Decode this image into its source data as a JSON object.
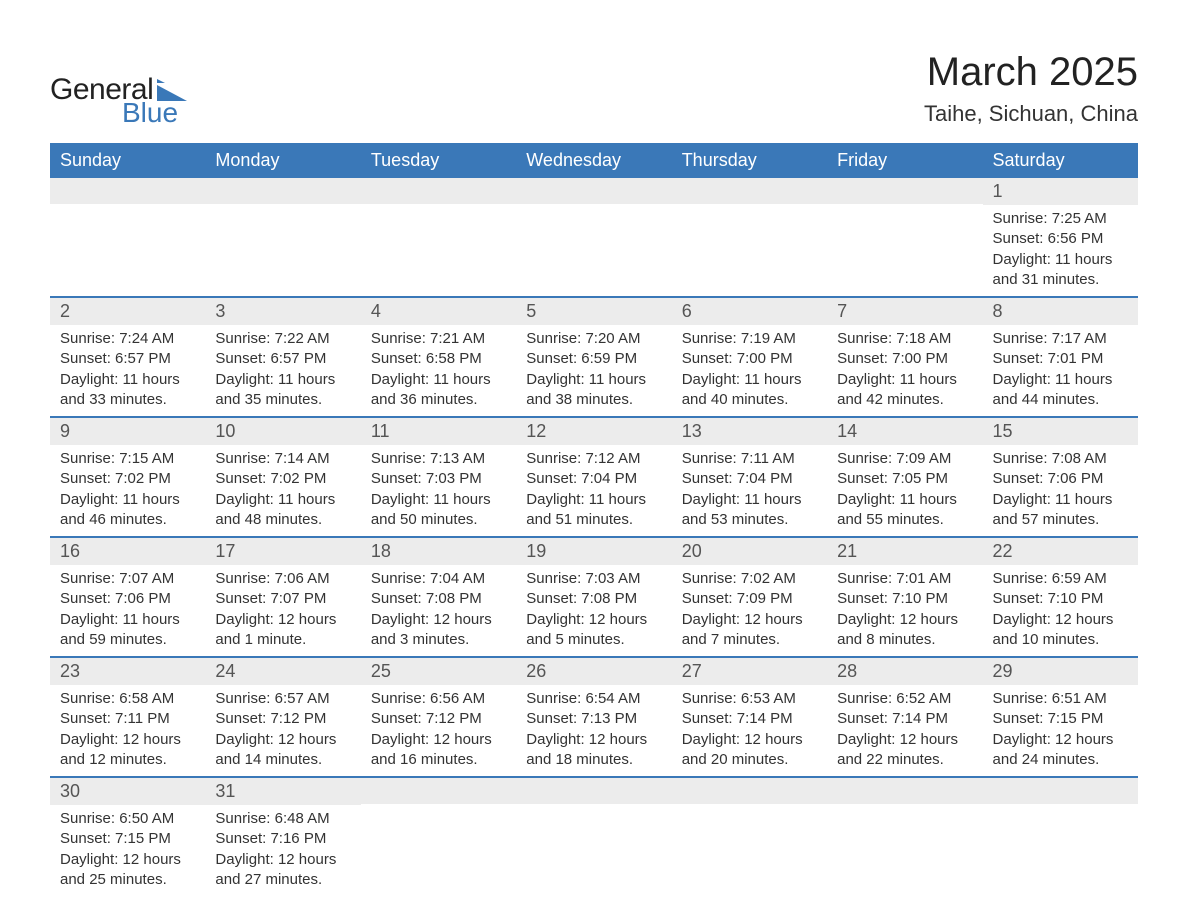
{
  "brand": {
    "word1": "General",
    "word2": "Blue",
    "flag_color": "#3a78b8"
  },
  "header": {
    "title": "March 2025",
    "subtitle": "Taihe, Sichuan, China"
  },
  "colors": {
    "header_bg": "#3a78b8",
    "header_text": "#ffffff",
    "daynum_bg": "#ececec",
    "daynum_text": "#555555",
    "body_text": "#333333",
    "row_divider": "#3a78b8",
    "page_bg": "#ffffff"
  },
  "typography": {
    "title_fontsize_pt": 30,
    "subtitle_fontsize_pt": 16,
    "header_cell_fontsize_pt": 14,
    "daynum_fontsize_pt": 14,
    "body_fontsize_pt": 11,
    "font_family": "Arial"
  },
  "calendar": {
    "type": "table",
    "columns": [
      "Sunday",
      "Monday",
      "Tuesday",
      "Wednesday",
      "Thursday",
      "Friday",
      "Saturday"
    ],
    "weeks": [
      [
        null,
        null,
        null,
        null,
        null,
        null,
        {
          "day": "1",
          "sunrise": "Sunrise: 7:25 AM",
          "sunset": "Sunset: 6:56 PM",
          "daylight1": "Daylight: 11 hours",
          "daylight2": "and 31 minutes."
        }
      ],
      [
        {
          "day": "2",
          "sunrise": "Sunrise: 7:24 AM",
          "sunset": "Sunset: 6:57 PM",
          "daylight1": "Daylight: 11 hours",
          "daylight2": "and 33 minutes."
        },
        {
          "day": "3",
          "sunrise": "Sunrise: 7:22 AM",
          "sunset": "Sunset: 6:57 PM",
          "daylight1": "Daylight: 11 hours",
          "daylight2": "and 35 minutes."
        },
        {
          "day": "4",
          "sunrise": "Sunrise: 7:21 AM",
          "sunset": "Sunset: 6:58 PM",
          "daylight1": "Daylight: 11 hours",
          "daylight2": "and 36 minutes."
        },
        {
          "day": "5",
          "sunrise": "Sunrise: 7:20 AM",
          "sunset": "Sunset: 6:59 PM",
          "daylight1": "Daylight: 11 hours",
          "daylight2": "and 38 minutes."
        },
        {
          "day": "6",
          "sunrise": "Sunrise: 7:19 AM",
          "sunset": "Sunset: 7:00 PM",
          "daylight1": "Daylight: 11 hours",
          "daylight2": "and 40 minutes."
        },
        {
          "day": "7",
          "sunrise": "Sunrise: 7:18 AM",
          "sunset": "Sunset: 7:00 PM",
          "daylight1": "Daylight: 11 hours",
          "daylight2": "and 42 minutes."
        },
        {
          "day": "8",
          "sunrise": "Sunrise: 7:17 AM",
          "sunset": "Sunset: 7:01 PM",
          "daylight1": "Daylight: 11 hours",
          "daylight2": "and 44 minutes."
        }
      ],
      [
        {
          "day": "9",
          "sunrise": "Sunrise: 7:15 AM",
          "sunset": "Sunset: 7:02 PM",
          "daylight1": "Daylight: 11 hours",
          "daylight2": "and 46 minutes."
        },
        {
          "day": "10",
          "sunrise": "Sunrise: 7:14 AM",
          "sunset": "Sunset: 7:02 PM",
          "daylight1": "Daylight: 11 hours",
          "daylight2": "and 48 minutes."
        },
        {
          "day": "11",
          "sunrise": "Sunrise: 7:13 AM",
          "sunset": "Sunset: 7:03 PM",
          "daylight1": "Daylight: 11 hours",
          "daylight2": "and 50 minutes."
        },
        {
          "day": "12",
          "sunrise": "Sunrise: 7:12 AM",
          "sunset": "Sunset: 7:04 PM",
          "daylight1": "Daylight: 11 hours",
          "daylight2": "and 51 minutes."
        },
        {
          "day": "13",
          "sunrise": "Sunrise: 7:11 AM",
          "sunset": "Sunset: 7:04 PM",
          "daylight1": "Daylight: 11 hours",
          "daylight2": "and 53 minutes."
        },
        {
          "day": "14",
          "sunrise": "Sunrise: 7:09 AM",
          "sunset": "Sunset: 7:05 PM",
          "daylight1": "Daylight: 11 hours",
          "daylight2": "and 55 minutes."
        },
        {
          "day": "15",
          "sunrise": "Sunrise: 7:08 AM",
          "sunset": "Sunset: 7:06 PM",
          "daylight1": "Daylight: 11 hours",
          "daylight2": "and 57 minutes."
        }
      ],
      [
        {
          "day": "16",
          "sunrise": "Sunrise: 7:07 AM",
          "sunset": "Sunset: 7:06 PM",
          "daylight1": "Daylight: 11 hours",
          "daylight2": "and 59 minutes."
        },
        {
          "day": "17",
          "sunrise": "Sunrise: 7:06 AM",
          "sunset": "Sunset: 7:07 PM",
          "daylight1": "Daylight: 12 hours",
          "daylight2": "and 1 minute."
        },
        {
          "day": "18",
          "sunrise": "Sunrise: 7:04 AM",
          "sunset": "Sunset: 7:08 PM",
          "daylight1": "Daylight: 12 hours",
          "daylight2": "and 3 minutes."
        },
        {
          "day": "19",
          "sunrise": "Sunrise: 7:03 AM",
          "sunset": "Sunset: 7:08 PM",
          "daylight1": "Daylight: 12 hours",
          "daylight2": "and 5 minutes."
        },
        {
          "day": "20",
          "sunrise": "Sunrise: 7:02 AM",
          "sunset": "Sunset: 7:09 PM",
          "daylight1": "Daylight: 12 hours",
          "daylight2": "and 7 minutes."
        },
        {
          "day": "21",
          "sunrise": "Sunrise: 7:01 AM",
          "sunset": "Sunset: 7:10 PM",
          "daylight1": "Daylight: 12 hours",
          "daylight2": "and 8 minutes."
        },
        {
          "day": "22",
          "sunrise": "Sunrise: 6:59 AM",
          "sunset": "Sunset: 7:10 PM",
          "daylight1": "Daylight: 12 hours",
          "daylight2": "and 10 minutes."
        }
      ],
      [
        {
          "day": "23",
          "sunrise": "Sunrise: 6:58 AM",
          "sunset": "Sunset: 7:11 PM",
          "daylight1": "Daylight: 12 hours",
          "daylight2": "and 12 minutes."
        },
        {
          "day": "24",
          "sunrise": "Sunrise: 6:57 AM",
          "sunset": "Sunset: 7:12 PM",
          "daylight1": "Daylight: 12 hours",
          "daylight2": "and 14 minutes."
        },
        {
          "day": "25",
          "sunrise": "Sunrise: 6:56 AM",
          "sunset": "Sunset: 7:12 PM",
          "daylight1": "Daylight: 12 hours",
          "daylight2": "and 16 minutes."
        },
        {
          "day": "26",
          "sunrise": "Sunrise: 6:54 AM",
          "sunset": "Sunset: 7:13 PM",
          "daylight1": "Daylight: 12 hours",
          "daylight2": "and 18 minutes."
        },
        {
          "day": "27",
          "sunrise": "Sunrise: 6:53 AM",
          "sunset": "Sunset: 7:14 PM",
          "daylight1": "Daylight: 12 hours",
          "daylight2": "and 20 minutes."
        },
        {
          "day": "28",
          "sunrise": "Sunrise: 6:52 AM",
          "sunset": "Sunset: 7:14 PM",
          "daylight1": "Daylight: 12 hours",
          "daylight2": "and 22 minutes."
        },
        {
          "day": "29",
          "sunrise": "Sunrise: 6:51 AM",
          "sunset": "Sunset: 7:15 PM",
          "daylight1": "Daylight: 12 hours",
          "daylight2": "and 24 minutes."
        }
      ],
      [
        {
          "day": "30",
          "sunrise": "Sunrise: 6:50 AM",
          "sunset": "Sunset: 7:15 PM",
          "daylight1": "Daylight: 12 hours",
          "daylight2": "and 25 minutes."
        },
        {
          "day": "31",
          "sunrise": "Sunrise: 6:48 AM",
          "sunset": "Sunset: 7:16 PM",
          "daylight1": "Daylight: 12 hours",
          "daylight2": "and 27 minutes."
        },
        null,
        null,
        null,
        null,
        null
      ]
    ]
  }
}
